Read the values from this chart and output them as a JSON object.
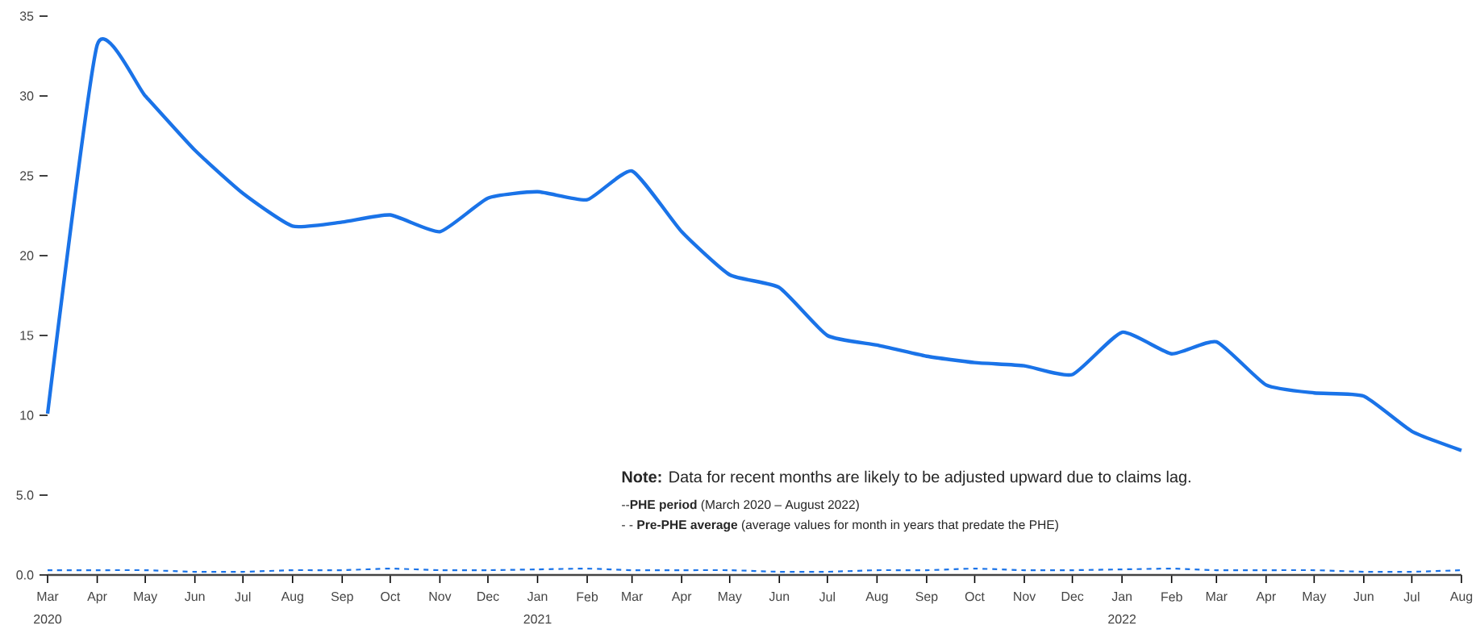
{
  "chart_data": {
    "type": "line",
    "x": [
      "2020-03",
      "2020-04",
      "2020-05",
      "2020-06",
      "2020-07",
      "2020-08",
      "2020-09",
      "2020-10",
      "2020-11",
      "2020-12",
      "2021-01",
      "2021-02",
      "2021-03",
      "2021-04",
      "2021-05",
      "2021-06",
      "2021-07",
      "2021-08",
      "2021-09",
      "2021-10",
      "2021-11",
      "2021-12",
      "2022-01",
      "2022-02",
      "2022-03",
      "2022-04",
      "2022-05",
      "2022-06",
      "2022-07",
      "2022-08"
    ],
    "series": [
      {
        "color": "#1a73e8",
        "line_style": "solid",
        "values": [
          10.1,
          33.2,
          30.0,
          26.6,
          23.9,
          21.85,
          22.1,
          22.55,
          21.5,
          23.6,
          24.0,
          23.5,
          25.3,
          21.5,
          18.8,
          18.0,
          15.0,
          14.4,
          13.7,
          13.3,
          13.1,
          12.55,
          15.2,
          13.85,
          14.6,
          11.9,
          11.4,
          11.2,
          9.0,
          7.8
        ]
      },
      {
        "color": "#1a73e8",
        "line_style": "dashed",
        "values": [
          0.3,
          0.3,
          0.3,
          0.2,
          0.2,
          0.3,
          0.3,
          0.4,
          0.3,
          0.3,
          0.35,
          0.4,
          0.3,
          0.3,
          0.3,
          0.2,
          0.2,
          0.3,
          0.3,
          0.4,
          0.3,
          0.3,
          0.35,
          0.4,
          0.3,
          0.3,
          0.3,
          0.2,
          0.2,
          0.3
        ]
      }
    ],
    "xlim": [
      "2020-03",
      "2022-08"
    ],
    "xticks": [
      {
        "value": "2020-03",
        "label": "Mar"
      },
      {
        "value": "2020-04",
        "label": "Apr"
      },
      {
        "value": "2020-05",
        "label": "May"
      },
      {
        "value": "2020-06",
        "label": "Jun"
      },
      {
        "value": "2020-07",
        "label": "Jul"
      },
      {
        "value": "2020-08",
        "label": "Aug"
      },
      {
        "value": "2020-09",
        "label": "Sep"
      },
      {
        "value": "2020-10",
        "label": "Oct"
      },
      {
        "value": "2020-11",
        "label": "Nov"
      },
      {
        "value": "2020-12",
        "label": "Dec"
      },
      {
        "value": "2021-01",
        "label": "Jan"
      },
      {
        "value": "2021-02",
        "label": "Feb"
      },
      {
        "value": "2021-03",
        "label": "Mar"
      },
      {
        "value": "2021-04",
        "label": "Apr"
      },
      {
        "value": "2021-05",
        "label": "May"
      },
      {
        "value": "2021-06",
        "label": "Jun"
      },
      {
        "value": "2021-07",
        "label": "Jul"
      },
      {
        "value": "2021-08",
        "label": "Aug"
      },
      {
        "value": "2021-09",
        "label": "Sep"
      },
      {
        "value": "2021-10",
        "label": "Oct"
      },
      {
        "value": "2021-11",
        "label": "Nov"
      },
      {
        "value": "2021-12",
        "label": "Dec"
      },
      {
        "value": "2022-01",
        "label": "Jan"
      },
      {
        "value": "2022-02",
        "label": "Feb"
      },
      {
        "value": "2022-03",
        "label": "Mar"
      },
      {
        "value": "2022-04",
        "label": "Apr"
      },
      {
        "value": "2022-05",
        "label": "May"
      },
      {
        "value": "2022-06",
        "label": "Jun"
      },
      {
        "value": "2022-07",
        "label": "Jul"
      },
      {
        "value": "2022-08",
        "label": "Aug"
      }
    ],
    "ylim": [
      0,
      35
    ],
    "yticks": [
      {
        "value": 0,
        "label": "0.0"
      },
      {
        "value": 5,
        "label": "5.0"
      },
      10,
      15,
      20,
      25,
      30,
      35
    ],
    "annotations": [
      "**Note:** Data for recent months are likely to be adjusted upward due to claims lag.",
      "--**PHE period** (March 2020 – August 2022)",
      "- - **Pre-PHE average** (average values for month in years that predate the PHE)",
      "2020",
      "2021",
      "2022"
    ],
    "grid": false,
    "marker": "none"
  }
}
